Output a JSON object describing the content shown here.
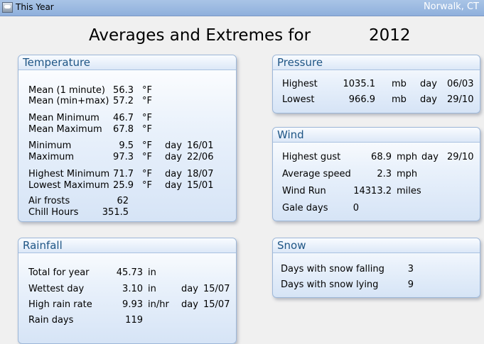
{
  "window": {
    "title": "This Year",
    "station": "Norwalk, CT"
  },
  "heading": {
    "label": "Averages and Extremes for",
    "year": "2012"
  },
  "temperature": {
    "title": "Temperature",
    "rows": [
      {
        "label": "Mean (1 minute)",
        "value": "56.3",
        "unit": "°F",
        "day_label": "",
        "date": ""
      },
      {
        "label": "Mean (min+max)",
        "value": "57.2",
        "unit": "°F",
        "day_label": "",
        "date": ""
      },
      {
        "label": "Mean Minimum",
        "value": "46.7",
        "unit": "°F",
        "day_label": "",
        "date": ""
      },
      {
        "label": "Mean Maximum",
        "value": "67.8",
        "unit": "°F",
        "day_label": "",
        "date": ""
      },
      {
        "label": "Minimum",
        "value": "9.5",
        "unit": "°F",
        "day_label": "day",
        "date": "16/01"
      },
      {
        "label": "Maximum",
        "value": "97.3",
        "unit": "°F",
        "day_label": "day",
        "date": "22/06"
      },
      {
        "label": "Highest Minimum",
        "value": "71.7",
        "unit": "°F",
        "day_label": "day",
        "date": "18/07"
      },
      {
        "label": "Lowest Maximum",
        "value": "25.9",
        "unit": "°F",
        "day_label": "day",
        "date": "15/01"
      },
      {
        "label": "Air frosts",
        "value": "62",
        "unit": "",
        "day_label": "",
        "date": ""
      },
      {
        "label": "Chill Hours",
        "value": "351.5",
        "unit": "",
        "day_label": "",
        "date": ""
      }
    ]
  },
  "rainfall": {
    "title": "Rainfall",
    "rows": [
      {
        "label": "Total for year",
        "value": "45.73",
        "unit": "in",
        "day_label": "",
        "date": ""
      },
      {
        "label": "Wettest day",
        "value": "3.10",
        "unit": "in",
        "day_label": "day",
        "date": "15/07"
      },
      {
        "label": "High rain rate",
        "value": "9.93",
        "unit": "in/hr",
        "day_label": "day",
        "date": "15/07"
      },
      {
        "label": "Rain days",
        "value": "119",
        "unit": "",
        "day_label": "",
        "date": ""
      }
    ]
  },
  "pressure": {
    "title": "Pressure",
    "rows": [
      {
        "label": "Highest",
        "value": "1035.1",
        "unit": "mb",
        "day_label": "day",
        "date": "06/03"
      },
      {
        "label": "Lowest",
        "value": "966.9",
        "unit": "mb",
        "day_label": "day",
        "date": "29/10"
      }
    ]
  },
  "wind": {
    "title": "Wind",
    "rows": [
      {
        "label": "Highest gust",
        "value": "68.9",
        "unit": "mph",
        "day_label": "day",
        "date": "29/10"
      },
      {
        "label": "Average speed",
        "value": "2.3",
        "unit": "mph",
        "day_label": "",
        "date": ""
      },
      {
        "label": "Wind Run",
        "value": "14313.2",
        "unit": "miles",
        "day_label": "",
        "date": ""
      },
      {
        "label": "Gale days",
        "value": "0",
        "unit": "",
        "day_label": "",
        "date": ""
      }
    ]
  },
  "snow": {
    "title": "Snow",
    "rows": [
      {
        "label": "Days with snow falling",
        "value": "3"
      },
      {
        "label": "Days with snow lying",
        "value": "9"
      }
    ]
  }
}
